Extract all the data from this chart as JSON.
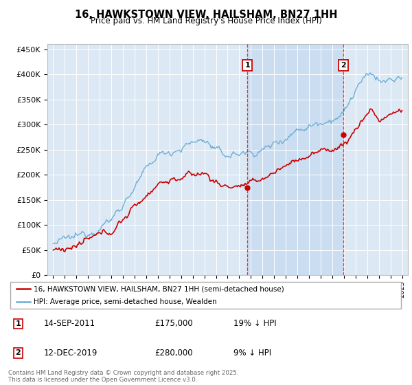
{
  "title": "16, HAWKSTOWN VIEW, HAILSHAM, BN27 1HH",
  "subtitle": "Price paid vs. HM Land Registry's House Price Index (HPI)",
  "bg_color": "#dce9f5",
  "ylim": [
    0,
    460000
  ],
  "yticks": [
    0,
    50000,
    100000,
    150000,
    200000,
    250000,
    300000,
    350000,
    400000,
    450000
  ],
  "xlim_start": 1994.5,
  "xlim_end": 2025.5,
  "sale1_date": 2011.71,
  "sale1_price": 175000,
  "sale2_date": 2019.95,
  "sale2_price": 280000,
  "legend_line1": "16, HAWKSTOWN VIEW, HAILSHAM, BN27 1HH (semi-detached house)",
  "legend_line2": "HPI: Average price, semi-detached house, Wealden",
  "footer": "Contains HM Land Registry data © Crown copyright and database right 2025.\nThis data is licensed under the Open Government Licence v3.0.",
  "red_color": "#cc0000",
  "blue_color": "#6baed6",
  "shade_color": "#dce9f5"
}
